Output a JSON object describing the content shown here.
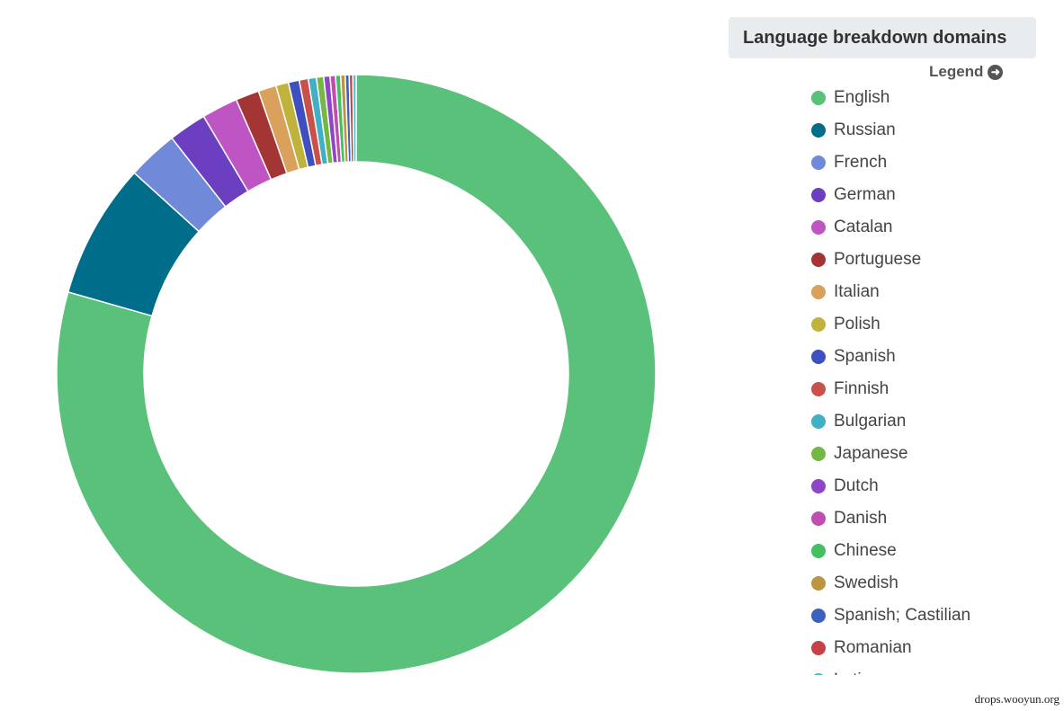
{
  "chart_data": {
    "type": "pie",
    "title": "Language breakdown domains",
    "legend_toggle_label": "Legend",
    "legend_position": "right",
    "slices": [
      {
        "label": "English",
        "value": 81.5,
        "color": "#5ac17a"
      },
      {
        "label": "Russian",
        "value": 7.5,
        "color": "#006d8a"
      },
      {
        "label": "French",
        "value": 2.8,
        "color": "#7089d9"
      },
      {
        "label": "German",
        "value": 2.1,
        "color": "#6b3fbf"
      },
      {
        "label": "Catalan",
        "value": 2.0,
        "color": "#bf55c2"
      },
      {
        "label": "Portuguese",
        "value": 1.3,
        "color": "#a33535"
      },
      {
        "label": "Italian",
        "value": 1.0,
        "color": "#d9a15c"
      },
      {
        "label": "Polish",
        "value": 0.7,
        "color": "#c0b33b"
      },
      {
        "label": "Spanish",
        "value": 0.6,
        "color": "#3f4fbf"
      },
      {
        "label": "Finnish",
        "value": 0.5,
        "color": "#c9514a"
      },
      {
        "label": "Bulgarian",
        "value": 0.45,
        "color": "#40b0c4"
      },
      {
        "label": "Japanese",
        "value": 0.4,
        "color": "#73b843"
      },
      {
        "label": "Dutch",
        "value": 0.35,
        "color": "#8f45c9"
      },
      {
        "label": "Danish",
        "value": 0.3,
        "color": "#c24db0"
      },
      {
        "label": "Chinese",
        "value": 0.28,
        "color": "#44c061"
      },
      {
        "label": "Swedish",
        "value": 0.25,
        "color": "#bd9440"
      },
      {
        "label": "Spanish; Castilian",
        "value": 0.22,
        "color": "#3c62bf"
      },
      {
        "label": "Romanian",
        "value": 0.2,
        "color": "#c54248"
      },
      {
        "label": "Latin",
        "value": 0.18,
        "color": "#45c0c4"
      }
    ]
  },
  "watermark": "drops.wooyun.org"
}
